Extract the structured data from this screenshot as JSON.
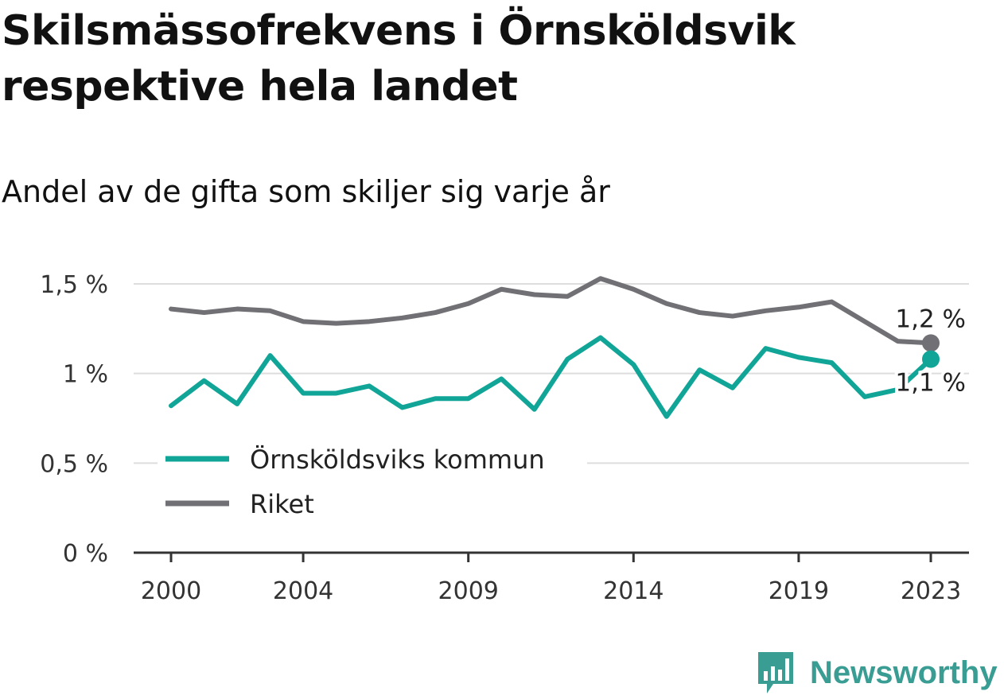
{
  "title": "Skilsmässofrekvens i Örnsköldsvik respektive hela landet",
  "subtitle": "Andel av de gifta som skiljer sig varje år",
  "brand": "Newsworthy",
  "colors": {
    "ornskoldsvik": "#11a598",
    "riket": "#707075",
    "grid": "#dddddd",
    "axis": "#333333",
    "brand": "#3a9d94"
  },
  "chart_data": {
    "type": "line",
    "x": [
      2000,
      2001,
      2002,
      2003,
      2004,
      2005,
      2006,
      2007,
      2008,
      2009,
      2010,
      2011,
      2012,
      2013,
      2014,
      2015,
      2016,
      2017,
      2018,
      2019,
      2020,
      2021,
      2022,
      2023
    ],
    "x_ticks": [
      2000,
      2004,
      2009,
      2014,
      2019,
      2023
    ],
    "y_ticks": [
      0,
      0.5,
      1,
      1.5
    ],
    "y_tick_labels": [
      "0 %",
      "0,5 %",
      "1 %",
      "1,5 %"
    ],
    "ylim": [
      0,
      1.5
    ],
    "grid": true,
    "legend_position": "lower-left",
    "series": [
      {
        "name": "Örnsköldsviks kommun",
        "key": "ornskoldsvik",
        "values": [
          0.82,
          0.96,
          0.83,
          1.1,
          0.89,
          0.89,
          0.93,
          0.81,
          0.86,
          0.86,
          0.97,
          0.8,
          1.08,
          1.2,
          1.05,
          0.76,
          1.02,
          0.92,
          1.14,
          1.09,
          1.06,
          0.87,
          0.91,
          1.08
        ],
        "end_label": "1,1 %"
      },
      {
        "name": "Riket",
        "key": "riket",
        "values": [
          1.36,
          1.34,
          1.36,
          1.35,
          1.29,
          1.28,
          1.29,
          1.31,
          1.34,
          1.39,
          1.47,
          1.44,
          1.43,
          1.53,
          1.47,
          1.39,
          1.34,
          1.32,
          1.35,
          1.37,
          1.4,
          1.29,
          1.18,
          1.17
        ],
        "end_label": "1,2 %"
      }
    ]
  }
}
